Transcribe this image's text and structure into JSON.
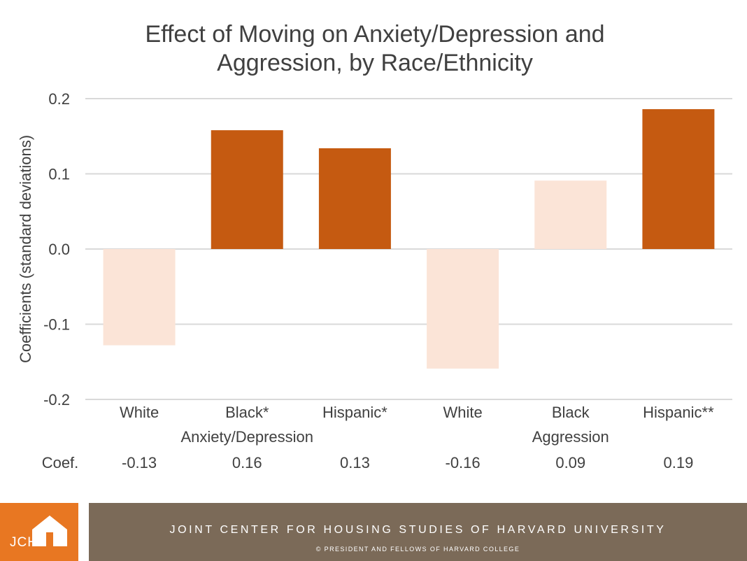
{
  "chart_data": {
    "type": "bar",
    "title": "Effect of Moving on Anxiety/Depression and Aggression, by Race/Ethnicity",
    "title_lines": [
      "Effect of Moving on Anxiety/Depression and",
      "Aggression, by Race/Ethnicity"
    ],
    "ylabel": "Coefficients (standard deviations)",
    "ylim": [
      -0.2,
      0.2
    ],
    "yticks": [
      0.2,
      0.1,
      0.0,
      -0.1,
      -0.2
    ],
    "ytick_labels": [
      "0.2",
      "0.1",
      "0.0",
      "-0.1",
      "-0.2"
    ],
    "grid": true,
    "groups": [
      "Anxiety/Depression",
      "Aggression"
    ],
    "categories": [
      "White",
      "Black*",
      "Hispanic*",
      "White",
      "Black",
      "Hispanic**"
    ],
    "category_group": [
      0,
      0,
      0,
      1,
      1,
      1
    ],
    "values": [
      -0.128,
      0.158,
      0.134,
      -0.159,
      0.091,
      0.186
    ],
    "significant": [
      false,
      true,
      true,
      false,
      false,
      true
    ],
    "coef_row_label": "Coef.",
    "coef_labels": [
      "-0.13",
      "0.16",
      "0.13",
      "-0.16",
      "0.09",
      "0.19"
    ],
    "colors": {
      "significant": "#c55a11",
      "not_significant": "#fbe4d7",
      "grid": "#d9d9d9",
      "text": "#404040"
    }
  },
  "footer": {
    "logo_text": "JCHS",
    "org_name": "JOINT CENTER FOR HOUSING STUDIES OF HARVARD UNIVERSITY",
    "copyright": "© PRESIDENT AND FELLOWS OF HARVARD COLLEGE",
    "logo_color": "#e87722",
    "band_color": "#7b6a58"
  }
}
